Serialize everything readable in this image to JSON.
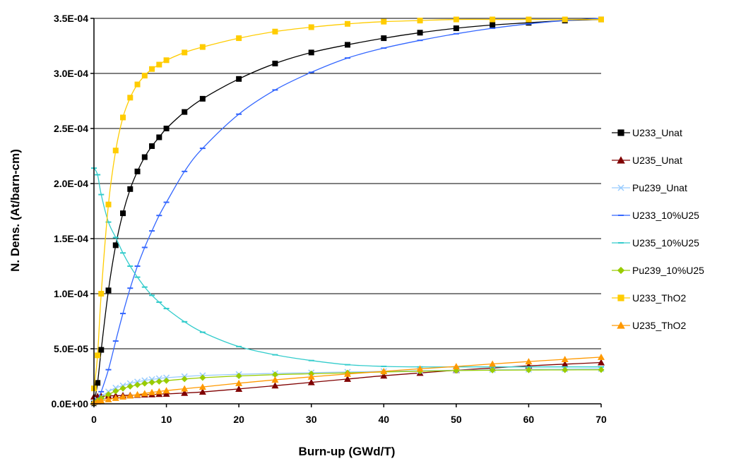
{
  "chart_data": {
    "type": "line",
    "title": "",
    "xlabel": "Burn-up (GWd/T)",
    "ylabel": "N. Dens. (At/barn-cm)",
    "xlim": [
      0,
      70
    ],
    "ylim": [
      0,
      0.00035
    ],
    "x_ticks": [
      0,
      10,
      20,
      30,
      40,
      50,
      60,
      70
    ],
    "y_ticks": [
      0,
      5e-05,
      0.0001,
      0.00015,
      0.0002,
      0.00025,
      0.0003,
      0.00035
    ],
    "y_tick_labels": [
      "0.0E+00",
      "5.0E-05",
      "1.0E-04",
      "1.5E-04",
      "2.0E-04",
      "2.5E-04",
      "3.0E-04",
      "3.5E-04"
    ],
    "x_tick_labels": [
      "0",
      "10",
      "20",
      "30",
      "40",
      "50",
      "60",
      "70"
    ],
    "grid": "horizontal",
    "legend_position": "right",
    "series": [
      {
        "name": "U233_Unat",
        "color": "#000000",
        "marker": "square",
        "x": [
          0,
          0.5,
          1,
          2,
          3,
          4,
          5,
          6,
          7,
          8,
          9,
          10,
          12.5,
          15,
          20,
          25,
          30,
          35,
          40,
          45,
          50,
          55,
          60,
          65,
          70
        ],
        "y": [
          5e-07,
          1.9e-05,
          4.9e-05,
          0.000103,
          0.000144,
          0.000173,
          0.000195,
          0.000211,
          0.000224,
          0.000234,
          0.000242,
          0.00025,
          0.000265,
          0.000277,
          0.000295,
          0.000309,
          0.000319,
          0.000326,
          0.000332,
          0.000337,
          0.000341,
          0.000344,
          0.000346,
          0.000348,
          0.000349
        ]
      },
      {
        "name": "U235_Unat",
        "color": "#800000",
        "marker": "triangle",
        "x": [
          0,
          0.5,
          1,
          2,
          3,
          4,
          5,
          6,
          7,
          8,
          9,
          10,
          12.5,
          15,
          20,
          25,
          30,
          35,
          40,
          45,
          50,
          55,
          60,
          65,
          70
        ],
        "y": [
          6.5e-06,
          6.7e-06,
          6.9e-06,
          7.2e-06,
          7.4e-06,
          7.6e-06,
          7.8e-06,
          8e-06,
          8.3e-06,
          8.5e-06,
          8.8e-06,
          9e-06,
          9.8e-06,
          1.08e-05,
          1.35e-05,
          1.65e-05,
          1.95e-05,
          2.25e-05,
          2.55e-05,
          2.8e-05,
          3.05e-05,
          3.25e-05,
          3.45e-05,
          3.6e-05,
          3.75e-05
        ]
      },
      {
        "name": "Pu239_Unat",
        "color": "#99ccff",
        "marker": "x",
        "x": [
          0,
          0.5,
          1,
          2,
          3,
          4,
          5,
          6,
          7,
          8,
          9,
          10,
          12.5,
          15,
          20,
          25,
          30,
          35,
          40,
          45,
          50,
          55,
          60,
          65,
          70
        ],
        "y": [
          1e-06,
          3.5e-06,
          6.5e-06,
          1.1e-05,
          1.45e-05,
          1.65e-05,
          1.85e-05,
          2e-05,
          2.12e-05,
          2.22e-05,
          2.3e-05,
          2.37e-05,
          2.48e-05,
          2.57e-05,
          2.68e-05,
          2.76e-05,
          2.83e-05,
          2.89e-05,
          2.95e-05,
          3e-05,
          3.05e-05,
          3.09e-05,
          3.12e-05,
          3.15e-05,
          3.18e-05
        ]
      },
      {
        "name": "U233_10%U25",
        "color": "#3366ff",
        "marker": "dash",
        "x": [
          0,
          0.5,
          1,
          2,
          3,
          4,
          5,
          6,
          7,
          8,
          9,
          10,
          12.5,
          15,
          20,
          25,
          30,
          35,
          40,
          45,
          50,
          55,
          60,
          65,
          70
        ],
        "y": [
          5e-07,
          4e-06,
          1.1e-05,
          3.1e-05,
          5.7e-05,
          8.2e-05,
          0.000105,
          0.000125,
          0.000142,
          0.000157,
          0.000171,
          0.000183,
          0.000211,
          0.000232,
          0.000263,
          0.000285,
          0.000301,
          0.000314,
          0.000323,
          0.00033,
          0.000336,
          0.000341,
          0.000345,
          0.000348,
          0.00035
        ]
      },
      {
        "name": "U235_10%U25",
        "color": "#33cccc",
        "marker": "dash",
        "x": [
          0,
          0.5,
          1,
          2,
          3,
          4,
          5,
          6,
          7,
          8,
          9,
          10,
          12.5,
          15,
          20,
          25,
          30,
          35,
          40,
          45,
          50,
          55,
          60,
          65,
          70
        ],
        "y": [
          0.000214,
          0.000208,
          0.00019,
          0.000165,
          0.000151,
          0.000137,
          0.000125,
          0.000115,
          0.000106,
          9.85e-05,
          9.23e-05,
          8.65e-05,
          7.45e-05,
          6.5e-05,
          5.2e-05,
          4.45e-05,
          3.93e-05,
          3.55e-05,
          3.4e-05,
          3.35e-05,
          3.35e-05,
          3.35e-05,
          3.35e-05,
          3.35e-05,
          3.35e-05
        ]
      },
      {
        "name": "Pu239_10%U25",
        "color": "#99cc00",
        "marker": "diamond",
        "x": [
          0,
          0.5,
          1,
          2,
          3,
          4,
          5,
          6,
          7,
          8,
          9,
          10,
          12.5,
          15,
          20,
          25,
          30,
          35,
          40,
          45,
          50,
          55,
          60,
          65,
          70
        ],
        "y": [
          1e-06,
          3e-06,
          5e-06,
          8.5e-06,
          1.15e-05,
          1.4e-05,
          1.58e-05,
          1.72e-05,
          1.85e-05,
          1.95e-05,
          2.03e-05,
          2.1e-05,
          2.25e-05,
          2.37e-05,
          2.53e-05,
          2.65e-05,
          2.73e-05,
          2.81e-05,
          2.89e-05,
          2.96e-05,
          3.02e-05,
          3.05e-05,
          3.07e-05,
          3.08e-05,
          3.09e-05
        ]
      },
      {
        "name": "U233_ThO2",
        "color": "#ffcc00",
        "marker": "square",
        "x": [
          0,
          0.5,
          1,
          2,
          3,
          4,
          5,
          6,
          7,
          8,
          9,
          10,
          12.5,
          15,
          20,
          25,
          30,
          35,
          40,
          45,
          50,
          55,
          60,
          65,
          70
        ],
        "y": [
          1.4e-05,
          4.4e-05,
          0.0001,
          0.000181,
          0.00023,
          0.00026,
          0.000278,
          0.00029,
          0.000298,
          0.000304,
          0.000308,
          0.000312,
          0.000319,
          0.000324,
          0.000332,
          0.000338,
          0.000342,
          0.000345,
          0.000347,
          0.000348,
          0.000349,
          0.000349,
          0.000349,
          0.000349,
          0.000349
        ]
      },
      {
        "name": "U235_ThO2",
        "color": "#ff9900",
        "marker": "triangle",
        "x": [
          0,
          0.5,
          1,
          2,
          3,
          4,
          5,
          6,
          7,
          8,
          9,
          10,
          12.5,
          15,
          20,
          25,
          30,
          35,
          40,
          45,
          50,
          55,
          60,
          65,
          70
        ],
        "y": [
          1.5e-06,
          2e-06,
          2.8e-06,
          4e-06,
          5.2e-06,
          6.4e-06,
          7.4e-06,
          8.4e-06,
          9.4e-06,
          1.04e-05,
          1.12e-05,
          1.2e-05,
          1.37e-05,
          1.53e-05,
          1.87e-05,
          2.18e-05,
          2.45e-05,
          2.71e-05,
          2.95e-05,
          3.18e-05,
          3.39e-05,
          3.62e-05,
          3.84e-05,
          4.04e-05,
          4.24e-05
        ]
      }
    ]
  }
}
